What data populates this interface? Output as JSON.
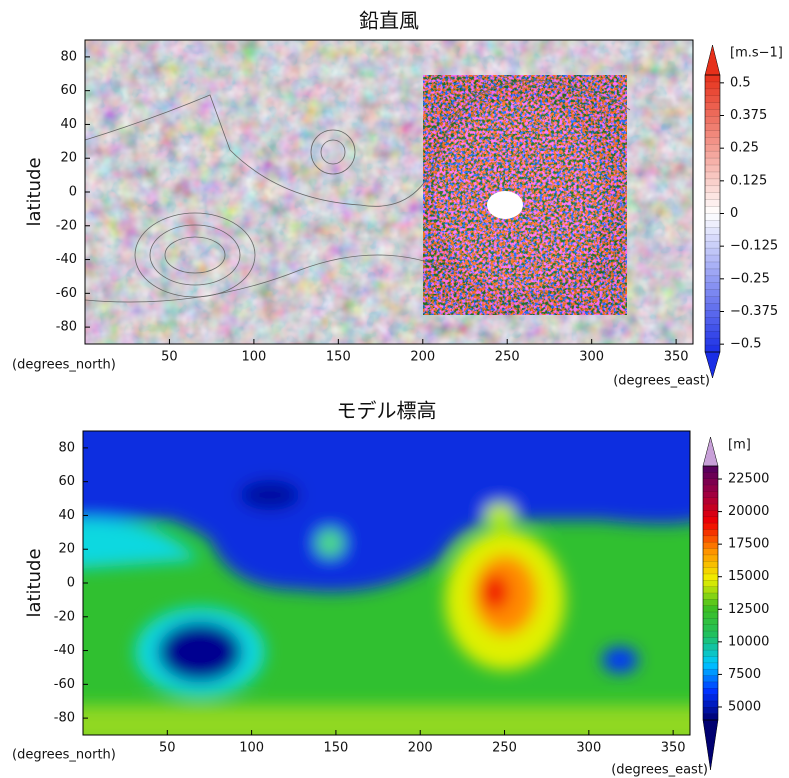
{
  "chart_data": [
    {
      "type": "heatmap",
      "title": "鉛直風",
      "y_label": "latitude",
      "y_unit_label": "(degrees_north)",
      "x_label": "(degrees_east)",
      "xlim": [
        0,
        360
      ],
      "xticks": [
        50,
        100,
        150,
        200,
        250,
        300,
        350
      ],
      "ylim": [
        -90,
        90
      ],
      "yticks": [
        -80,
        -60,
        -40,
        -20,
        0,
        20,
        40,
        60,
        80
      ],
      "colorbar": {
        "label": "[m.s−1]",
        "lim": [
          -0.53,
          0.53
        ],
        "colors": [
          "#1a2ee6",
          "#ffffff",
          "#e6301a"
        ],
        "ticks": [
          {
            "value": -0.5,
            "label": "−0.5"
          },
          {
            "value": -0.375,
            "label": "−0.375"
          },
          {
            "value": -0.25,
            "label": "−0.25"
          },
          {
            "value": -0.125,
            "label": "−0.125"
          },
          0,
          0.125,
          0.25,
          0.375,
          0.5
        ]
      }
    },
    {
      "type": "heatmap",
      "title": "モデル標高",
      "y_label": "latitude",
      "y_unit_label": "(degrees_north)",
      "x_label": "(degrees_east)",
      "xlim": [
        0,
        360
      ],
      "xticks": [
        50,
        100,
        150,
        200,
        250,
        300,
        350
      ],
      "ylim": [
        -90,
        90
      ],
      "yticks": [
        -80,
        -60,
        -40,
        -20,
        0,
        20,
        40,
        60,
        80
      ],
      "colorbar": {
        "label": "[m]",
        "lim": [
          4000,
          23500
        ],
        "colors": [
          "#000070",
          "#0030ff",
          "#00c8ff",
          "#20c060",
          "#40c020",
          "#f0f000",
          "#ff9000",
          "#f00000",
          "#a00040",
          "#500060"
        ],
        "ticks": [
          5000,
          7500,
          10000,
          12500,
          15000,
          17500,
          20000,
          22500
        ]
      }
    }
  ]
}
